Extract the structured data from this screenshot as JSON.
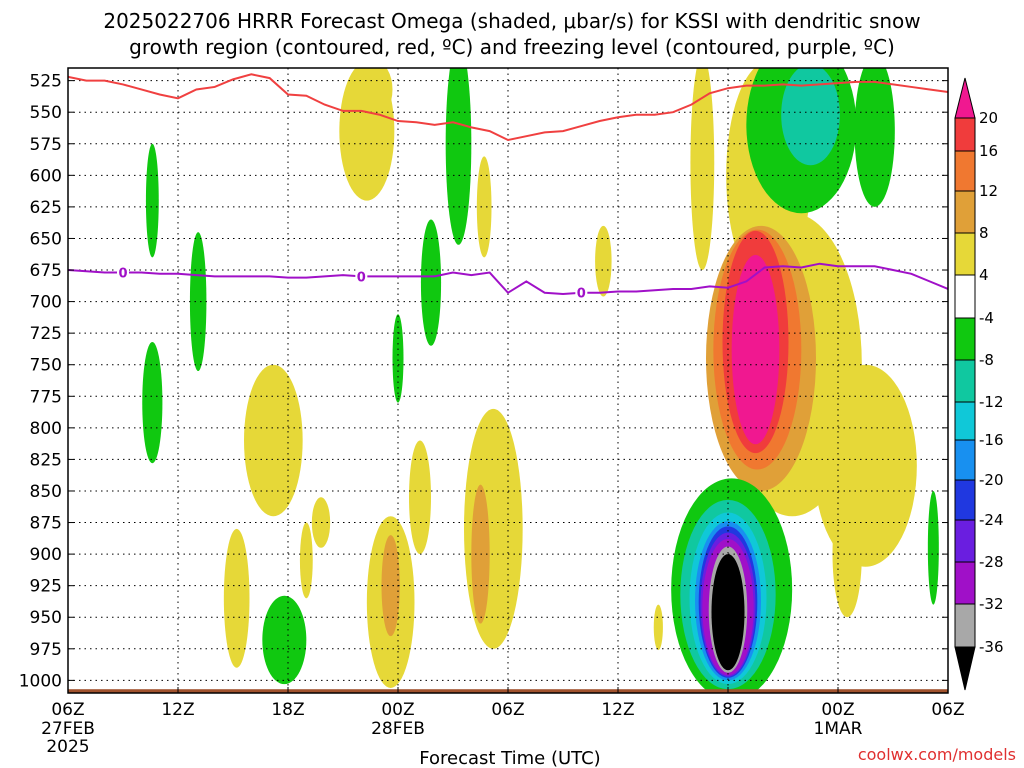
{
  "title_line1": "2025022706 HRRR Forecast Omega (shaded, μbar/s) for KSSI with dendritic snow",
  "title_line2": "growth region (contoured, red, ºC) and freezing level (contoured, purple, ºC)",
  "credit": "coolwx.com/models",
  "colors": {
    "dgz_line": "#f04040",
    "freezing_line": "#a010c8",
    "ground": "#a0522d",
    "credit": "#e03030"
  },
  "chart_data": {
    "type": "heatmap",
    "xlabel": "Forecast Time (UTC)",
    "y_axis": {
      "ticks": [
        525,
        550,
        575,
        600,
        625,
        650,
        675,
        700,
        725,
        750,
        775,
        800,
        825,
        850,
        875,
        900,
        925,
        950,
        975,
        1000
      ],
      "range_hpa": [
        515,
        1010
      ],
      "orientation": "pressure decreasing upward"
    },
    "x_axis": {
      "range_hours": [
        0,
        48
      ],
      "ticks": [
        {
          "hour": 0,
          "label": "06Z",
          "date": "27FEB",
          "year": "2025"
        },
        {
          "hour": 6,
          "label": "12Z",
          "date": "",
          "year": ""
        },
        {
          "hour": 12,
          "label": "18Z",
          "date": "",
          "year": ""
        },
        {
          "hour": 18,
          "label": "00Z",
          "date": "28FEB",
          "year": ""
        },
        {
          "hour": 24,
          "label": "06Z",
          "date": "",
          "year": ""
        },
        {
          "hour": 30,
          "label": "12Z",
          "date": "",
          "year": ""
        },
        {
          "hour": 36,
          "label": "18Z",
          "date": "",
          "year": ""
        },
        {
          "hour": 42,
          "label": "00Z",
          "date": "1MAR",
          "year": ""
        },
        {
          "hour": 48,
          "label": "06Z",
          "date": "",
          "year": ""
        }
      ]
    },
    "grid": true,
    "colorbar": {
      "label_values": [
        20,
        16,
        12,
        8,
        4,
        -4,
        -8,
        -12,
        -16,
        -20,
        -24,
        -28,
        -32,
        -36
      ],
      "bins": [
        {
          "range": "above 20",
          "color": "#f01890"
        },
        {
          "range": "16 to 20",
          "color": "#f03c3c"
        },
        {
          "range": "12 to 16",
          "color": "#f07830"
        },
        {
          "range": "8 to 12",
          "color": "#e0a038"
        },
        {
          "range": "4 to 8",
          "color": "#e6d838"
        },
        {
          "range": "-4 to 4",
          "color": "#ffffff"
        },
        {
          "range": "-8 to -4",
          "color": "#10c810"
        },
        {
          "range": "-12 to -8",
          "color": "#10c8a0"
        },
        {
          "range": "-16 to -12",
          "color": "#10c8d8"
        },
        {
          "range": "-20 to -16",
          "color": "#1890f0"
        },
        {
          "range": "-24 to -20",
          "color": "#2038e0"
        },
        {
          "range": "-28 to -24",
          "color": "#6a1ee0"
        },
        {
          "range": "-32 to -28",
          "color": "#a010c8"
        },
        {
          "range": "-36 to -32",
          "color": "#a8a8a8"
        },
        {
          "range": "below -36",
          "color": "#000000"
        }
      ]
    },
    "dgz_top_line": {
      "name": "dendritic snow growth region",
      "hours": [
        0,
        1,
        2,
        3,
        4,
        5,
        6,
        7,
        8,
        9,
        10,
        11,
        12,
        13,
        14,
        15,
        16,
        17,
        18,
        19,
        20,
        21,
        22,
        23,
        24,
        25,
        26,
        27,
        28,
        29,
        30,
        31,
        32,
        33,
        34,
        35,
        36,
        37,
        38,
        39,
        40,
        41,
        42,
        43,
        44,
        45,
        46,
        47,
        48
      ],
      "pressure": [
        522,
        525,
        525,
        528,
        532,
        536,
        539,
        532,
        530,
        524,
        520,
        523,
        536,
        537,
        544,
        549,
        549,
        552,
        557,
        558,
        560,
        558,
        562,
        565,
        572,
        569,
        566,
        565,
        561,
        557,
        554,
        552,
        552,
        550,
        544,
        535,
        531,
        529,
        529,
        528,
        529,
        528,
        527,
        526,
        526,
        528,
        530,
        532,
        534
      ]
    },
    "freezing_line": {
      "name": "freezing level",
      "contour_label": "0",
      "hours": [
        0,
        1,
        2,
        3,
        4,
        5,
        6,
        7,
        8,
        9,
        10,
        11,
        12,
        13,
        14,
        15,
        16,
        17,
        18,
        19,
        20,
        21,
        22,
        23,
        24,
        25,
        26,
        27,
        28,
        29,
        30,
        31,
        32,
        33,
        34,
        35,
        36,
        37,
        38,
        39,
        40,
        41,
        42,
        43,
        44,
        45,
        46,
        47,
        48
      ],
      "pressure": [
        675,
        676,
        677,
        677,
        677,
        678,
        678,
        679,
        680,
        680,
        680,
        680,
        681,
        681,
        680,
        679,
        680,
        680,
        680,
        680,
        680,
        677,
        679,
        677,
        693,
        684,
        693,
        694,
        693,
        693,
        692,
        692,
        691,
        690,
        690,
        688,
        689,
        684,
        673,
        672,
        673,
        670,
        672,
        672,
        672,
        675,
        678,
        684,
        690
      ]
    },
    "omega_regions": [
      {
        "bin": "4 to 8",
        "t": 16.3,
        "p": 565,
        "rt": 1.5,
        "rp": 55
      },
      {
        "bin": "4 to 8",
        "t": 16.8,
        "p": 532,
        "rt": 0.9,
        "rp": 22
      },
      {
        "bin": "-8 to -4",
        "t": 21.3,
        "p": 575,
        "rt": 0.7,
        "rp": 80
      },
      {
        "bin": "-8 to -4",
        "t": 4.6,
        "p": 620,
        "rt": 0.35,
        "rp": 45
      },
      {
        "bin": "-8 to -4",
        "t": 7.1,
        "p": 700,
        "rt": 0.45,
        "rp": 55
      },
      {
        "bin": "-8 to -4",
        "t": 4.6,
        "p": 780,
        "rt": 0.55,
        "rp": 48
      },
      {
        "bin": "-8 to -4",
        "t": 19.8,
        "p": 685,
        "rt": 0.55,
        "rp": 50
      },
      {
        "bin": "-8 to -4",
        "t": 18.0,
        "p": 745,
        "rt": 0.3,
        "rp": 35
      },
      {
        "bin": "-8 to -4",
        "t": 11.8,
        "p": 968,
        "rt": 1.2,
        "rp": 35
      },
      {
        "bin": "-8 to -4",
        "t": 47.2,
        "p": 895,
        "rt": 0.3,
        "rp": 45
      },
      {
        "bin": "4 to 8",
        "t": 11.2,
        "p": 810,
        "rt": 1.6,
        "rp": 60
      },
      {
        "bin": "4 to 8",
        "t": 9.2,
        "p": 935,
        "rt": 0.7,
        "rp": 55
      },
      {
        "bin": "4 to 8",
        "t": 13.8,
        "p": 875,
        "rt": 0.5,
        "rp": 20
      },
      {
        "bin": "4 to 8",
        "t": 13.0,
        "p": 905,
        "rt": 0.35,
        "rp": 30
      },
      {
        "bin": "4 to 8",
        "t": 17.6,
        "p": 938,
        "rt": 1.3,
        "rp": 68
      },
      {
        "bin": "8 to 12",
        "t": 17.6,
        "p": 925,
        "rt": 0.5,
        "rp": 40
      },
      {
        "bin": "4 to 8",
        "t": 19.2,
        "p": 855,
        "rt": 0.6,
        "rp": 45
      },
      {
        "bin": "4 to 8",
        "t": 23.2,
        "p": 880,
        "rt": 1.6,
        "rp": 95
      },
      {
        "bin": "8 to 12",
        "t": 22.5,
        "p": 900,
        "rt": 0.5,
        "rp": 55
      },
      {
        "bin": "4 to 8",
        "t": 22.7,
        "p": 625,
        "rt": 0.4,
        "rp": 40
      },
      {
        "bin": "4 to 8",
        "t": 29.2,
        "p": 668,
        "rt": 0.45,
        "rp": 28
      },
      {
        "bin": "4 to 8",
        "t": 32.2,
        "p": 958,
        "rt": 0.25,
        "rp": 18
      },
      {
        "bin": "4 to 8",
        "t": 34.6,
        "p": 590,
        "rt": 0.65,
        "rp": 85
      },
      {
        "bin": "4 to 8",
        "t": 38.2,
        "p": 600,
        "rt": 2.3,
        "rp": 90
      },
      {
        "bin": "4 to 8",
        "t": 39.5,
        "p": 750,
        "rt": 3.8,
        "rp": 120
      },
      {
        "bin": "4 to 8",
        "t": 43.5,
        "p": 830,
        "rt": 2.8,
        "rp": 80
      },
      {
        "bin": "4 to 8",
        "t": 42.5,
        "p": 900,
        "rt": 0.8,
        "rp": 50
      },
      {
        "bin": "-8 to -4",
        "t": 40.0,
        "p": 560,
        "rt": 3.0,
        "rp": 70
      },
      {
        "bin": "-12 to -8",
        "t": 40.5,
        "p": 552,
        "rt": 1.6,
        "rp": 40
      },
      {
        "bin": "-8 to -4",
        "t": 44.0,
        "p": 565,
        "rt": 1.1,
        "rp": 60
      },
      {
        "bin": "8 to 12",
        "t": 37.8,
        "p": 745,
        "rt": 3.0,
        "rp": 105
      },
      {
        "bin": "12 to 16",
        "t": 37.6,
        "p": 738,
        "rt": 2.4,
        "rp": 95
      },
      {
        "bin": "16 to 20",
        "t": 37.5,
        "p": 732,
        "rt": 1.8,
        "rp": 88
      },
      {
        "bin": "above 20",
        "t": 37.5,
        "p": 738,
        "rt": 1.3,
        "rp": 75
      },
      {
        "bin": "-8 to -4",
        "t": 36.2,
        "p": 928,
        "rt": 3.3,
        "rp": 88
      },
      {
        "bin": "-12 to -8",
        "t": 36.0,
        "p": 932,
        "rt": 2.6,
        "rp": 75
      },
      {
        "bin": "-16 to -12",
        "t": 36.0,
        "p": 935,
        "rt": 2.1,
        "rp": 68
      },
      {
        "bin": "-20 to -16",
        "t": 36.0,
        "p": 937,
        "rt": 1.8,
        "rp": 63
      },
      {
        "bin": "-24 to -20",
        "t": 36.0,
        "p": 938,
        "rt": 1.6,
        "rp": 60
      },
      {
        "bin": "-28 to -24",
        "t": 36.0,
        "p": 940,
        "rt": 1.5,
        "rp": 57
      },
      {
        "bin": "-32 to -28",
        "t": 36.0,
        "p": 942,
        "rt": 1.4,
        "rp": 54
      },
      {
        "bin": "-36 to -32",
        "t": 36.0,
        "p": 944,
        "rt": 1.05,
        "rp": 50
      },
      {
        "bin": "below -36",
        "t": 36.0,
        "p": 946,
        "rt": 0.9,
        "rp": 46
      }
    ]
  }
}
